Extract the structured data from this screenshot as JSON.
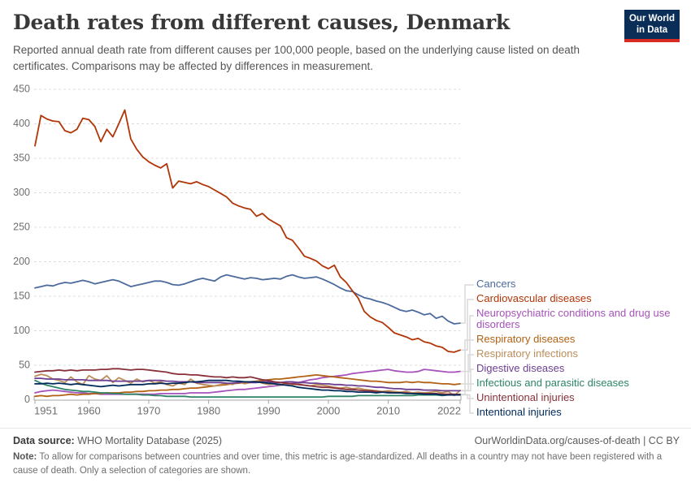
{
  "header": {
    "title": "Death rates from different causes, Denmark",
    "subtitle": "Reported annual death rate from different causes per 100,000 people, based on the underlying cause listed on death certificates. Comparisons may be affected by differences in measurement."
  },
  "logo": {
    "line1": "Our World",
    "line2": "in Data",
    "bg_color": "#0b2e59",
    "accent_color": "#d92a23"
  },
  "footer": {
    "source_label": "Data source:",
    "source_text": " WHO Mortality Database (2025)",
    "link_text": "OurWorldinData.org/causes-of-death | CC BY",
    "note_label": "Note:",
    "note_text": " To allow for comparisons between countries and over time, this metric is age-standardized. All deaths in a country may not have been registered with a cause of death. Only a selection of categories are shown."
  },
  "chart_data": {
    "type": "line",
    "title": "Death rates from different causes, Denmark",
    "xlabel": "",
    "ylabel": "",
    "xlim": [
      1951,
      2022
    ],
    "ylim": [
      0,
      450
    ],
    "x_ticks": [
      1951,
      1960,
      1970,
      1980,
      1990,
      2000,
      2010,
      2022
    ],
    "y_ticks": [
      0,
      50,
      100,
      150,
      200,
      250,
      300,
      350,
      400,
      450
    ],
    "grid": "horizontal-dashed",
    "legend_position": "right",
    "start_year": 1951,
    "end_year": 2022,
    "series": [
      {
        "name": "Cancers",
        "color": "#4C6A9C",
        "legend_lines": [
          "Cancers"
        ],
        "values": [
          162,
          164,
          166,
          165,
          168,
          170,
          169,
          171,
          173,
          171,
          168,
          170,
          172,
          174,
          172,
          168,
          164,
          166,
          168,
          170,
          172,
          172,
          170,
          167,
          166,
          168,
          171,
          174,
          176,
          174,
          172,
          178,
          181,
          179,
          177,
          175,
          177,
          176,
          174,
          175,
          176,
          175,
          179,
          181,
          178,
          176,
          177,
          178,
          175,
          171,
          167,
          162,
          158,
          157,
          152,
          148,
          146,
          143,
          141,
          138,
          134,
          130,
          128,
          130,
          127,
          123,
          125,
          118,
          121,
          114,
          110,
          111
        ]
      },
      {
        "name": "Cardiovascular diseases",
        "color": "#B13507",
        "legend_lines": [
          "Cardiovascular diseases"
        ],
        "values": [
          368,
          412,
          407,
          404,
          403,
          390,
          387,
          392,
          408,
          406,
          396,
          374,
          392,
          381,
          400,
          420,
          378,
          363,
          352,
          345,
          340,
          336,
          342,
          307,
          317,
          315,
          313,
          316,
          312,
          309,
          304,
          299,
          294,
          285,
          281,
          278,
          276,
          266,
          270,
          262,
          257,
          252,
          235,
          231,
          220,
          208,
          205,
          201,
          194,
          190,
          195,
          178,
          170,
          158,
          147,
          128,
          120,
          115,
          112,
          105,
          97,
          94,
          91,
          87,
          89,
          84,
          82,
          78,
          76,
          70,
          69,
          72
        ]
      },
      {
        "name": "Neuropsychiatric conditions and drug use disorders",
        "color": "#A652BA",
        "legend_lines": [
          "Neuropsychiatric conditions and drug use",
          "disorders"
        ],
        "values": [
          10,
          12,
          13,
          14,
          13,
          12,
          11,
          10,
          10,
          9,
          9,
          8,
          8,
          8,
          8,
          8,
          8,
          8,
          8,
          8,
          8,
          9,
          9,
          9,
          9,
          9,
          10,
          10,
          10,
          10,
          11,
          12,
          13,
          14,
          15,
          15,
          16,
          17,
          18,
          19,
          20,
          21,
          22,
          24,
          25,
          27,
          29,
          30,
          32,
          33,
          34,
          35,
          36,
          38,
          39,
          40,
          41,
          42,
          43,
          44,
          42,
          41,
          40,
          40,
          41,
          44,
          43,
          42,
          41,
          40,
          40,
          41
        ]
      },
      {
        "name": "Respiratory diseases",
        "color": "#B16214",
        "legend_lines": [
          "Respiratory diseases"
        ],
        "values": [
          5,
          6,
          5,
          6,
          6,
          7,
          8,
          7,
          8,
          8,
          9,
          9,
          10,
          10,
          10,
          11,
          11,
          12,
          12,
          13,
          13,
          14,
          14,
          15,
          15,
          16,
          17,
          17,
          18,
          19,
          20,
          21,
          22,
          23,
          24,
          25,
          26,
          27,
          28,
          29,
          30,
          30,
          31,
          32,
          33,
          34,
          35,
          36,
          35,
          34,
          33,
          32,
          31,
          30,
          29,
          28,
          27,
          27,
          26,
          25,
          25,
          25,
          26,
          25,
          26,
          25,
          25,
          24,
          23,
          23,
          22,
          23
        ]
      },
      {
        "name": "Respiratory infections",
        "color": "#BC8E5A",
        "legend_lines": [
          "Respiratory infections"
        ],
        "values": [
          34,
          37,
          35,
          30,
          28,
          25,
          33,
          26,
          22,
          35,
          30,
          28,
          35,
          25,
          32,
          28,
          24,
          30,
          26,
          28,
          24,
          26,
          22,
          20,
          24,
          22,
          30,
          24,
          22,
          21,
          20,
          22,
          24,
          22,
          26,
          23,
          25,
          27,
          24,
          22,
          23,
          21,
          24,
          22,
          23,
          21,
          20,
          22,
          21,
          20,
          18,
          17,
          18,
          16,
          17,
          15,
          14,
          13,
          12,
          13,
          12,
          11,
          12,
          10,
          11,
          10,
          11,
          12,
          10,
          12,
          6,
          13.5
        ]
      },
      {
        "name": "Digestive diseases",
        "color": "#6D3E91",
        "legend_lines": [
          "Digestive diseases"
        ],
        "values": [
          31,
          31,
          30,
          30,
          30,
          29,
          29,
          29,
          29,
          28,
          28,
          28,
          28,
          27,
          27,
          27,
          27,
          27,
          27,
          28,
          28,
          28,
          27,
          27,
          26,
          26,
          26,
          25,
          25,
          25,
          25,
          25,
          24,
          24,
          25,
          26,
          25,
          25,
          26,
          26,
          25,
          25,
          26,
          26,
          25,
          25,
          24,
          24,
          23,
          23,
          22,
          22,
          21,
          21,
          20,
          20,
          19,
          18,
          18,
          17,
          16,
          16,
          15,
          15,
          15,
          14,
          14,
          14,
          13,
          13,
          13,
          13
        ]
      },
      {
        "name": "Infectious and parasitic diseases",
        "color": "#2C8465",
        "legend_lines": [
          "Infectious and parasitic diseases"
        ],
        "values": [
          28,
          24,
          21,
          19,
          17,
          15,
          14,
          13,
          12,
          12,
          11,
          10,
          10,
          9,
          9,
          8,
          8,
          8,
          7,
          7,
          6,
          6,
          5,
          5,
          5,
          5,
          4,
          4,
          4,
          4,
          4,
          4,
          4,
          4,
          4,
          4,
          4,
          4,
          4,
          4,
          4,
          4,
          4,
          4,
          4,
          4,
          4,
          4,
          4,
          5,
          5,
          5,
          5,
          5,
          6,
          6,
          6,
          6,
          6,
          6,
          6,
          6,
          6,
          6,
          7,
          7,
          7,
          7,
          6,
          7,
          7,
          8
        ]
      },
      {
        "name": "Unintentional injuries",
        "color": "#883039",
        "legend_lines": [
          "Unintentional injuries"
        ],
        "values": [
          40,
          41,
          42,
          42,
          43,
          42,
          43,
          42,
          43,
          43,
          43,
          44,
          44,
          45,
          45,
          44,
          43,
          44,
          44,
          43,
          42,
          41,
          40,
          38,
          37,
          37,
          36,
          36,
          35,
          34,
          33,
          33,
          32,
          33,
          32,
          32,
          33,
          31,
          29,
          28,
          26,
          25,
          24,
          23,
          22,
          21,
          20,
          19,
          18,
          18,
          17,
          16,
          15,
          15,
          14,
          13,
          13,
          12,
          11,
          11,
          10,
          10,
          10,
          9,
          9,
          9,
          9,
          9,
          8,
          8,
          8,
          7.5
        ]
      },
      {
        "name": "Intentional injuries",
        "color": "#00295B",
        "legend_lines": [
          "Intentional injuries"
        ],
        "values": [
          23,
          23,
          24,
          23,
          24,
          23,
          22,
          23,
          22,
          21,
          20,
          19,
          20,
          21,
          20,
          21,
          22,
          22,
          22,
          23,
          23,
          24,
          23,
          24,
          24,
          25,
          26,
          26,
          27,
          28,
          28,
          28,
          28,
          27,
          27,
          26,
          26,
          26,
          25,
          24,
          23,
          22,
          21,
          20,
          18,
          17,
          16,
          15,
          14,
          14,
          13,
          13,
          12,
          12,
          11,
          11,
          11,
          10,
          11,
          10,
          10,
          10,
          9,
          9,
          9,
          8,
          8,
          8,
          7,
          7,
          7,
          7
        ]
      }
    ]
  }
}
